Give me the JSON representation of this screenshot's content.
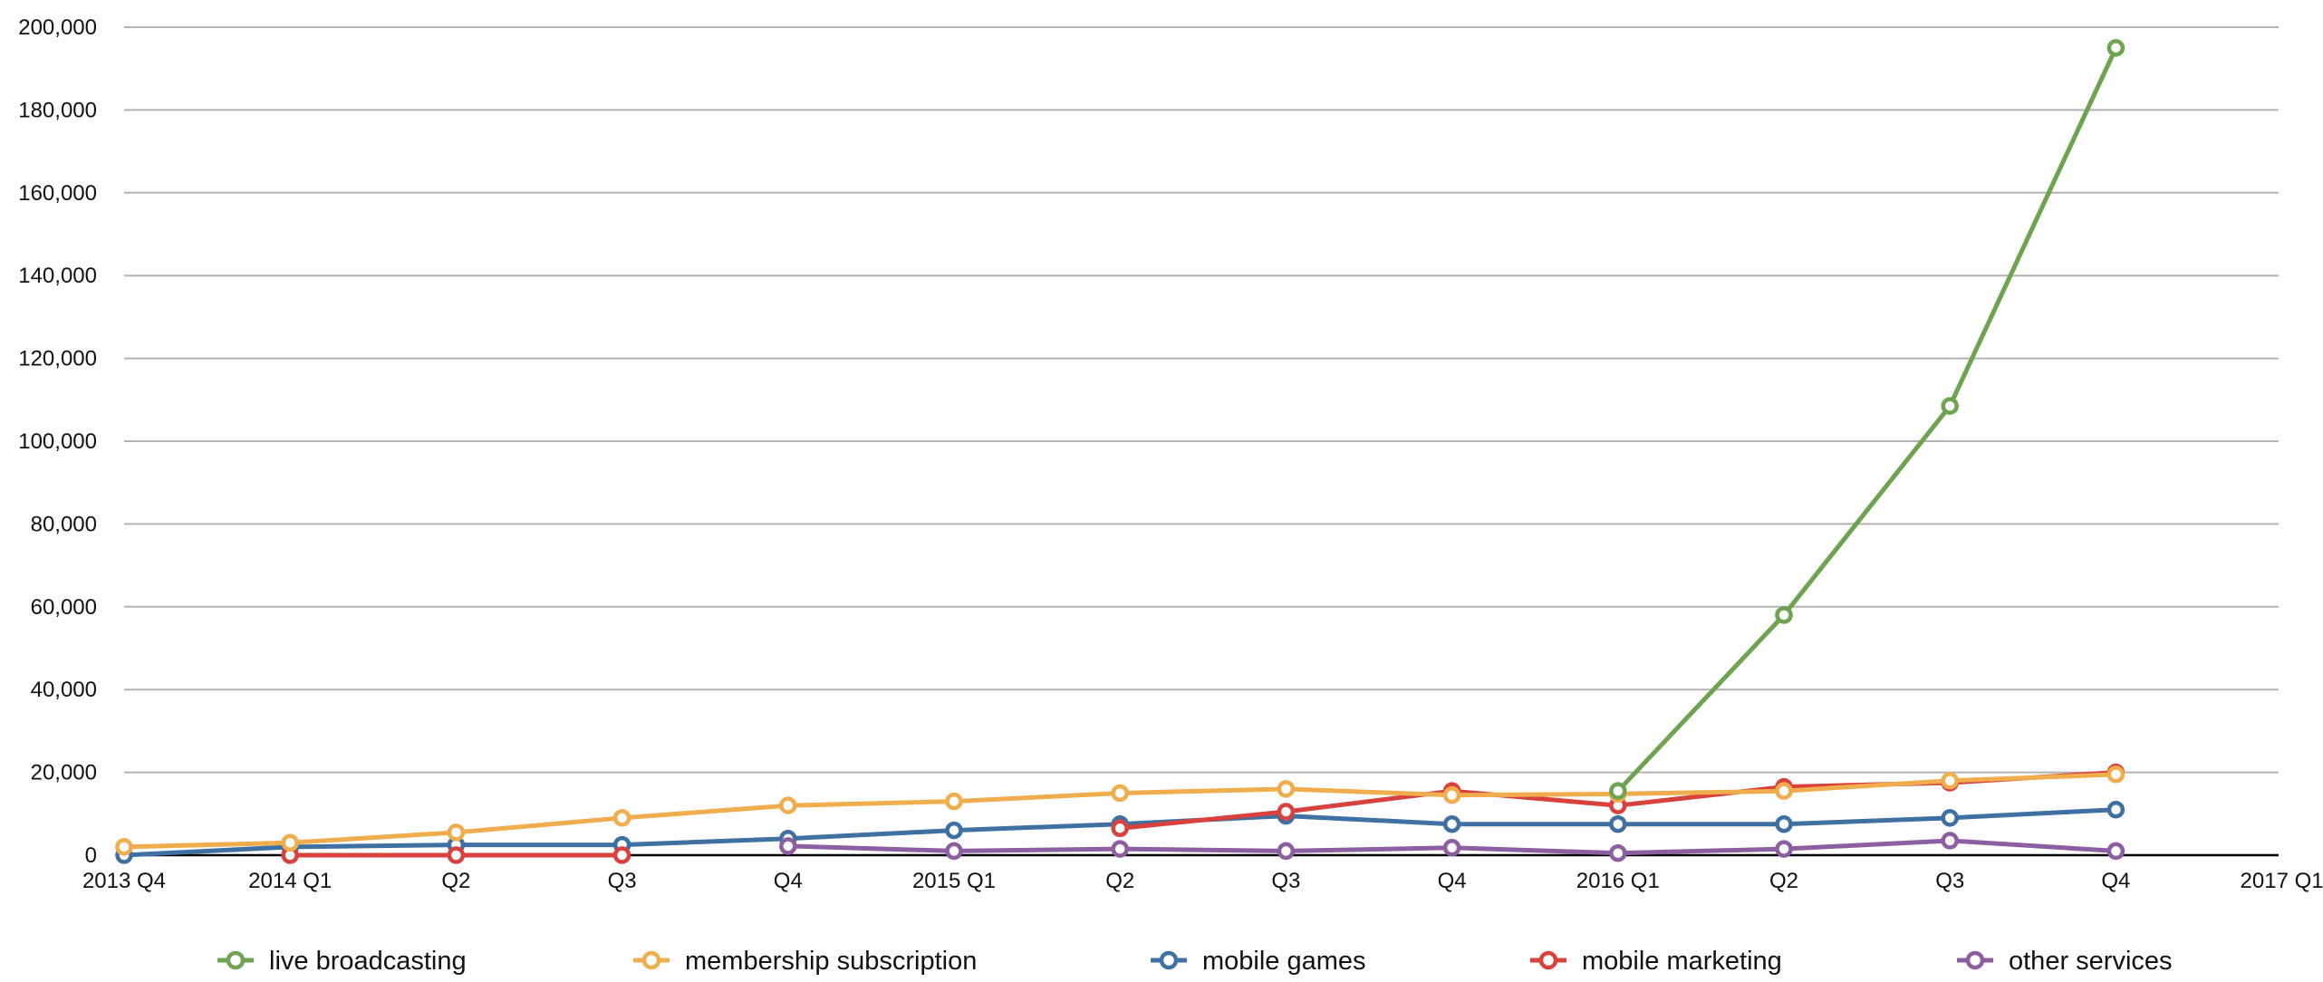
{
  "chart_data": {
    "type": "line",
    "title": "",
    "xlabel": "",
    "ylabel": "",
    "categories": [
      "2013 Q4",
      "2014 Q1",
      "Q2",
      "Q3",
      "Q4",
      "2015 Q1",
      "Q2",
      "Q3",
      "Q4",
      "2016 Q1",
      "Q2",
      "Q3",
      "Q4",
      "2017 Q1"
    ],
    "ylim": [
      0,
      200000
    ],
    "y_ticks": [
      "0",
      "20,000",
      "40,000",
      "60,000",
      "80,000",
      "100,000",
      "120,000",
      "140,000",
      "160,000",
      "180,000",
      "200,000"
    ],
    "y_tick_values": [
      0,
      20000,
      40000,
      60000,
      80000,
      100000,
      120000,
      140000,
      160000,
      180000,
      200000
    ],
    "grid": true,
    "legend_position": "bottom",
    "series": [
      {
        "name": "live broadcasting",
        "color": "#6ea34f",
        "values": [
          null,
          null,
          null,
          null,
          null,
          null,
          null,
          null,
          null,
          15500,
          58000,
          108500,
          195000,
          null
        ]
      },
      {
        "name": "membership subscription",
        "color": "#f0ad4e",
        "values": [
          2000,
          3000,
          5500,
          9000,
          12000,
          13000,
          15000,
          16000,
          14500,
          14800,
          15500,
          18000,
          19500,
          null
        ]
      },
      {
        "name": "mobile games",
        "color": "#3f70a3",
        "values": [
          0,
          2000,
          2500,
          2500,
          4000,
          6000,
          7500,
          9500,
          7500,
          7500,
          7500,
          9000,
          11000,
          null
        ]
      },
      {
        "name": "mobile marketing",
        "color": "#d9413d",
        "values": [
          null,
          0,
          0,
          0,
          null,
          null,
          6500,
          10500,
          15500,
          12000,
          16500,
          17500,
          20000,
          null
        ]
      },
      {
        "name": "other services",
        "color": "#8e5ea2",
        "values": [
          null,
          null,
          null,
          null,
          2200,
          1000,
          1500,
          1000,
          1800,
          500,
          1500,
          3500,
          1000,
          null
        ]
      }
    ]
  }
}
